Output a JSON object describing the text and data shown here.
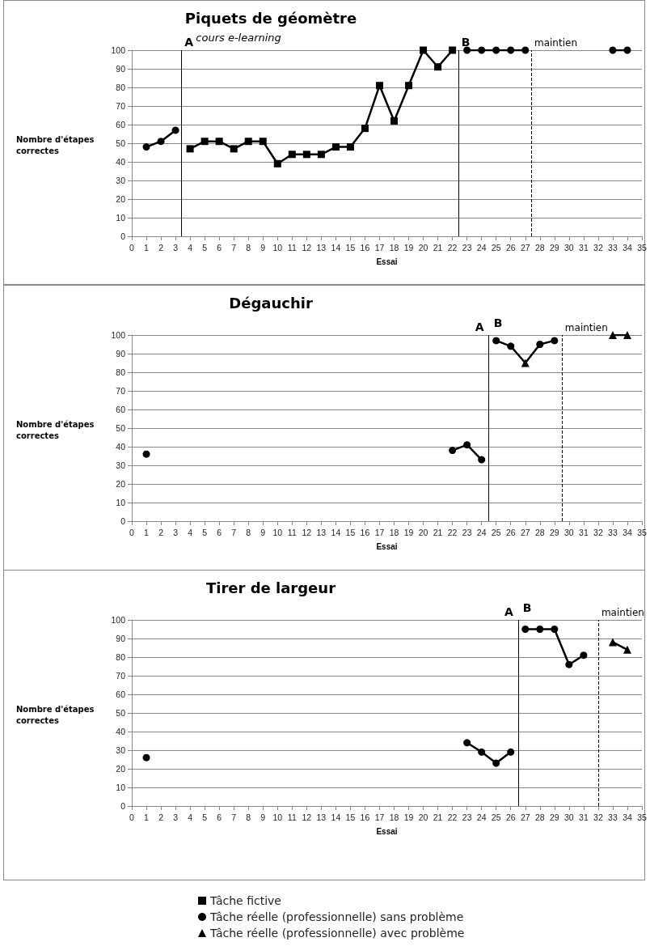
{
  "chart_data": [
    {
      "type": "line",
      "title": "Piquets de géomètre",
      "xlabel": "Essai",
      "ylabel": "Nombre d'étapes correctes",
      "xlim": [
        0,
        35
      ],
      "xticks": [
        0,
        1,
        2,
        3,
        4,
        5,
        6,
        7,
        8,
        9,
        10,
        11,
        12,
        13,
        14,
        15,
        16,
        17,
        18,
        19,
        20,
        21,
        22,
        23,
        24,
        25,
        26,
        27,
        28,
        29,
        30,
        31,
        32,
        33,
        34,
        35
      ],
      "ylim": [
        0,
        100
      ],
      "yticks": [
        0,
        10,
        20,
        30,
        40,
        50,
        60,
        70,
        80,
        90,
        100
      ],
      "grid": "y",
      "legend": false,
      "series": [
        {
          "color": "#000000",
          "marker": "square",
          "x": [
            4,
            5,
            6,
            7,
            8,
            9,
            10,
            11,
            12,
            13,
            14,
            15,
            16,
            17,
            18,
            19,
            20,
            21,
            22
          ],
          "values": [
            47,
            51,
            51,
            47,
            51,
            51,
            39,
            44,
            44,
            44,
            48,
            48,
            58,
            81,
            62,
            81,
            100,
            91,
            100
          ]
        },
        {
          "color": "#000000",
          "marker": "circle",
          "x": [
            1,
            2,
            3,
            3.5,
            23,
            24,
            25,
            26,
            27,
            28,
            33,
            34
          ],
          "values": [
            48,
            51,
            57,
            null,
            100,
            100,
            100,
            100,
            100,
            null,
            100,
            100
          ]
        }
      ],
      "ref_lines": [
        {
          "axis": "x",
          "value": 3.4,
          "label": "A",
          "line_style": "solid"
        },
        {
          "axis": "x",
          "value": 22.4,
          "label": "B",
          "line_style": "solid"
        },
        {
          "axis": "x",
          "value": 27.4,
          "label": "maintien",
          "line_style": "dashed"
        }
      ],
      "annotations": [
        "cours e-learning"
      ]
    },
    {
      "type": "line",
      "title": "Dégauchir",
      "xlabel": "Essai",
      "ylabel": "Nombre d'étapes correctes",
      "xlim": [
        0,
        35
      ],
      "xticks": [
        0,
        1,
        2,
        3,
        4,
        5,
        6,
        7,
        8,
        9,
        10,
        11,
        12,
        13,
        14,
        15,
        16,
        17,
        18,
        19,
        20,
        21,
        22,
        23,
        24,
        25,
        26,
        27,
        28,
        29,
        30,
        31,
        32,
        33,
        34,
        35
      ],
      "ylim": [
        0,
        100
      ],
      "yticks": [
        0,
        10,
        20,
        30,
        40,
        50,
        60,
        70,
        80,
        90,
        100
      ],
      "grid": "y",
      "legend": false,
      "series": [
        {
          "color": "#000000",
          "marker": "circle",
          "x": [
            1,
            2,
            22,
            23,
            24,
            24.5,
            25,
            26,
            27,
            28,
            29
          ],
          "values": [
            36,
            null,
            38,
            41,
            33,
            null,
            97,
            94,
            85,
            95,
            97
          ]
        },
        {
          "color": "#000000",
          "marker": "triangle",
          "x": [
            27,
            30,
            33,
            34
          ],
          "values": [
            85,
            null,
            100,
            100
          ]
        }
      ],
      "ref_lines": [
        {
          "axis": "x",
          "value": 24.5,
          "label": "A",
          "line_style": "solid"
        },
        {
          "axis": "x",
          "value": 29.5,
          "label": "maintien",
          "line_style": "dashed"
        }
      ],
      "annotations": [
        {
          "text": "B",
          "x": 24.5,
          "y": 100
        }
      ]
    },
    {
      "type": "line",
      "title": "Tirer de largeur",
      "xlabel": "Essai",
      "ylabel": "Nombre d'étapes correctes",
      "xlim": [
        0,
        35
      ],
      "xticks": [
        0,
        1,
        2,
        3,
        4,
        5,
        6,
        7,
        8,
        9,
        10,
        11,
        12,
        13,
        14,
        15,
        16,
        17,
        18,
        19,
        20,
        21,
        22,
        23,
        24,
        25,
        26,
        27,
        28,
        29,
        30,
        31,
        32,
        33,
        34,
        35
      ],
      "ylim": [
        0,
        100
      ],
      "yticks": [
        0,
        10,
        20,
        30,
        40,
        50,
        60,
        70,
        80,
        90,
        100
      ],
      "grid": "y",
      "legend": "bottom",
      "series": [
        {
          "name": "Tâche fictive",
          "color": "#000000",
          "marker": "square"
        },
        {
          "name": "Tâche réelle (professionnelle) sans problème",
          "color": "#000000",
          "marker": "circle",
          "x": [
            1,
            2,
            23,
            24,
            25,
            26,
            26.5,
            27,
            28,
            29,
            30,
            31
          ],
          "values": [
            26,
            null,
            34,
            29,
            23,
            29,
            null,
            95,
            95,
            95,
            76,
            81
          ]
        },
        {
          "name": "Tâche réelle (professionnelle) avec problème",
          "color": "#000000",
          "marker": "triangle",
          "x": [
            33,
            34
          ],
          "values": [
            88,
            84
          ]
        }
      ],
      "ref_lines": [
        {
          "axis": "x",
          "value": 26.5,
          "label": "A",
          "line_style": "solid"
        },
        {
          "axis": "x",
          "value": 32,
          "label": "maintien",
          "line_style": "dashed"
        }
      ],
      "annotations": [
        {
          "text": "B",
          "x": 26.5,
          "y": 100
        }
      ]
    }
  ]
}
